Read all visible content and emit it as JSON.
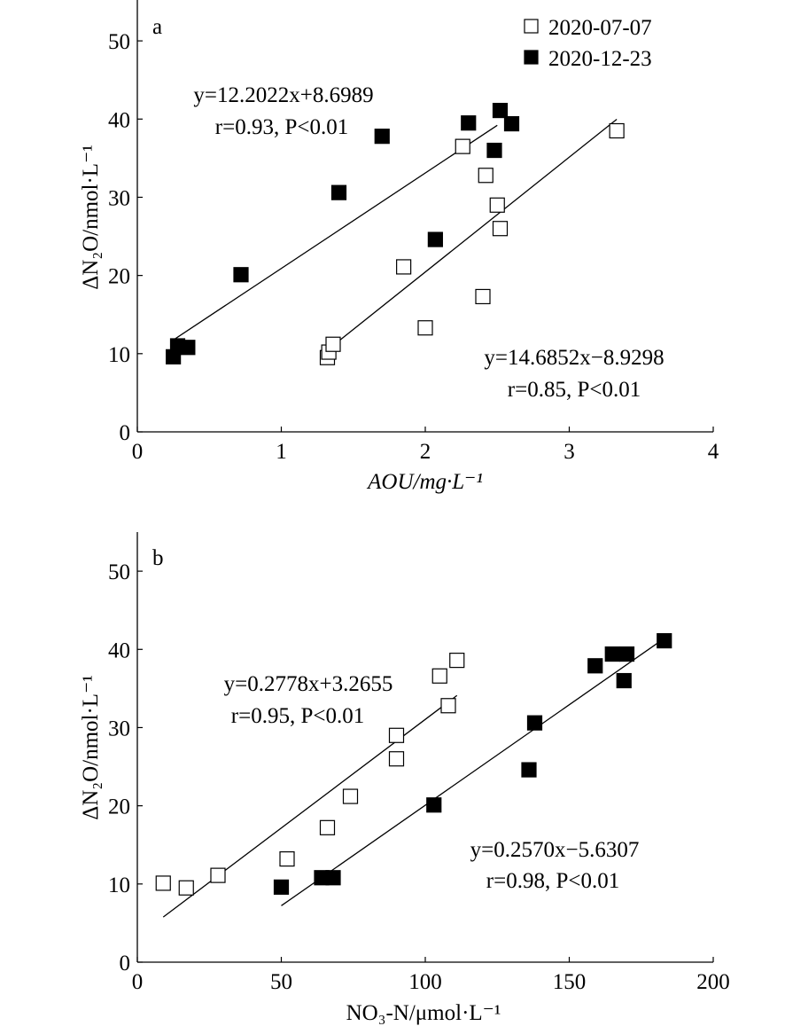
{
  "chart_data": [
    {
      "type": "scatter",
      "panel_label": "a",
      "xlabel": "AOU/mg·L⁻¹",
      "ylabel": "ΔN₂O/nmol·L⁻¹",
      "xlim": [
        0,
        4
      ],
      "ylim": [
        0,
        55
      ],
      "x_ticks": [
        "0",
        "1",
        "2",
        "3",
        "4"
      ],
      "y_ticks": [
        "0",
        "10",
        "20",
        "30",
        "40",
        "50"
      ],
      "legend": {
        "position": "top-right",
        "entries": [
          "2020-07-07",
          "2020-12-23"
        ]
      },
      "series": [
        {
          "name": "2020-07-07",
          "marker": "open-square",
          "points": [
            [
              1.32,
              9.5
            ],
            [
              1.33,
              10.2
            ],
            [
              1.36,
              11.2
            ],
            [
              1.85,
              21.1
            ],
            [
              2.0,
              13.3
            ],
            [
              2.26,
              36.5
            ],
            [
              2.4,
              17.3
            ],
            [
              2.42,
              32.8
            ],
            [
              2.5,
              29.0
            ],
            [
              2.52,
              26.0
            ],
            [
              3.33,
              38.5
            ]
          ],
          "fit": {
            "slope": 14.6852,
            "intercept": -8.9298,
            "x_range": [
              1.33,
              3.33
            ]
          }
        },
        {
          "name": "2020-12-23",
          "marker": "filled-square",
          "points": [
            [
              0.25,
              9.6
            ],
            [
              0.28,
              11.0
            ],
            [
              0.35,
              10.8
            ],
            [
              0.72,
              20.1
            ],
            [
              1.4,
              30.6
            ],
            [
              1.7,
              37.8
            ],
            [
              2.07,
              24.6
            ],
            [
              2.3,
              39.5
            ],
            [
              2.48,
              36.0
            ],
            [
              2.52,
              41.1
            ],
            [
              2.6,
              39.4
            ]
          ],
          "fit": {
            "slope": 12.2022,
            "intercept": 8.6989,
            "x_range": [
              0.25,
              2.5
            ]
          }
        }
      ],
      "annotations": [
        {
          "lines": [
            "y=12.2022x+8.6989",
            "r=0.93, P<0.01"
          ]
        },
        {
          "lines": [
            "y=14.6852x−8.9298",
            "r=0.85, P<0.01"
          ]
        }
      ]
    },
    {
      "type": "scatter",
      "panel_label": "b",
      "xlabel": "NO₃-N/μmol·L⁻¹",
      "ylabel": "ΔN₂O/nmol·L⁻¹",
      "xlim": [
        0,
        200
      ],
      "ylim": [
        0,
        55
      ],
      "x_ticks": [
        "0",
        "50",
        "100",
        "150",
        "200"
      ],
      "y_ticks": [
        "0",
        "10",
        "20",
        "30",
        "40",
        "50"
      ],
      "series": [
        {
          "name": "2020-07-07",
          "marker": "open-square",
          "points": [
            [
              9,
              10.1
            ],
            [
              17,
              9.5
            ],
            [
              28,
              11.1
            ],
            [
              52,
              13.2
            ],
            [
              66,
              17.2
            ],
            [
              74,
              21.2
            ],
            [
              90,
              26.0
            ],
            [
              90,
              29.0
            ],
            [
              105,
              36.6
            ],
            [
              108,
              32.8
            ],
            [
              111,
              38.6
            ]
          ],
          "fit": {
            "slope": 0.2778,
            "intercept": 3.2655,
            "x_range": [
              9,
              111
            ]
          }
        },
        {
          "name": "2020-12-23",
          "marker": "filled-square",
          "points": [
            [
              50,
              9.6
            ],
            [
              64,
              10.8
            ],
            [
              68,
              10.8
            ],
            [
              103,
              20.1
            ],
            [
              136,
              24.6
            ],
            [
              138,
              30.6
            ],
            [
              159,
              37.9
            ],
            [
              165,
              39.4
            ],
            [
              170,
              39.4
            ],
            [
              169,
              36.0
            ],
            [
              183,
              41.1
            ]
          ],
          "fit": {
            "slope": 0.257,
            "intercept": -5.6307,
            "x_range": [
              50,
              183
            ]
          }
        }
      ],
      "annotations": [
        {
          "lines": [
            "y=0.2778x+3.2655",
            "r=0.95, P<0.01"
          ]
        },
        {
          "lines": [
            "y=0.2570x−5.6307",
            "r=0.98, P<0.01"
          ]
        }
      ]
    }
  ]
}
